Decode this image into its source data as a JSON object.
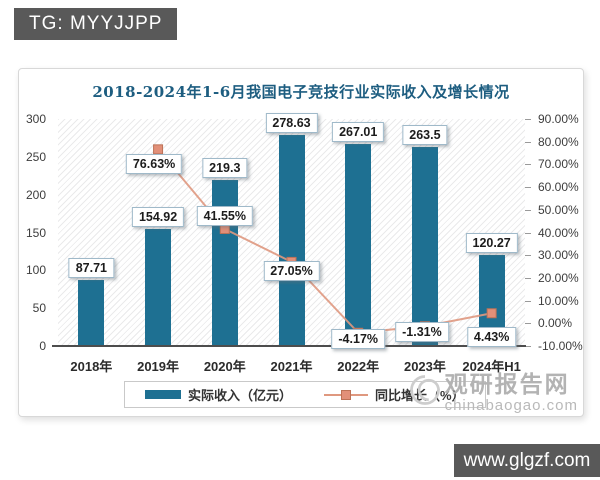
{
  "tg_badge": {
    "label": "TG: MYYJJPP"
  },
  "chart_data": {
    "type": "bar",
    "subtype": "bar+line combo, dual axis",
    "title": "2018-2024年1-6月我国电子竞技行业实际收入及增长情况",
    "categories": [
      "2018年",
      "2019年",
      "2020年",
      "2021年",
      "2022年",
      "2023年",
      "2024年H1"
    ],
    "series": [
      {
        "name": "实际收入（亿元）",
        "type": "bar",
        "axis": "left",
        "color": "#1e7092",
        "values": [
          87.71,
          154.92,
          219.3,
          278.63,
          267.01,
          263.5,
          120.27
        ],
        "labels": [
          "87.71",
          "154.92",
          "219.3",
          "278.63",
          "267.01",
          "263.5",
          "120.27"
        ]
      },
      {
        "name": "同比增长（%）",
        "type": "line",
        "axis": "right",
        "color": "#df987f",
        "marker_fill": "#e29079",
        "marker_border": "#bd7257",
        "values": [
          null,
          76.63,
          41.55,
          27.05,
          -4.17,
          -1.31,
          4.43
        ],
        "labels": [
          null,
          "76.63%",
          "41.55%",
          "27.05%",
          "-4.17%",
          "-1.31%",
          "4.43%"
        ]
      }
    ],
    "left_axis": {
      "min": 0,
      "max": 300,
      "step": 50,
      "tick_labels": [
        "300",
        "250",
        "200",
        "150",
        "100",
        "50",
        "0"
      ]
    },
    "right_axis": {
      "min": -10,
      "max": 90,
      "step": 10,
      "tick_labels": [
        "90.00%",
        "80.00%",
        "70.00%",
        "60.00%",
        "50.00%",
        "40.00%",
        "30.00%",
        "20.00%",
        "10.00%",
        "0.00%",
        "-10.00%"
      ]
    },
    "legend_position": "bottom",
    "plot_background": "diagonal-hatch",
    "title_color": "#1d5d80"
  },
  "watermark": {
    "site_name": "观研报告网",
    "site_url": "chinabaogao.com"
  },
  "footer_badge": {
    "label": "www.glgzf.com"
  }
}
